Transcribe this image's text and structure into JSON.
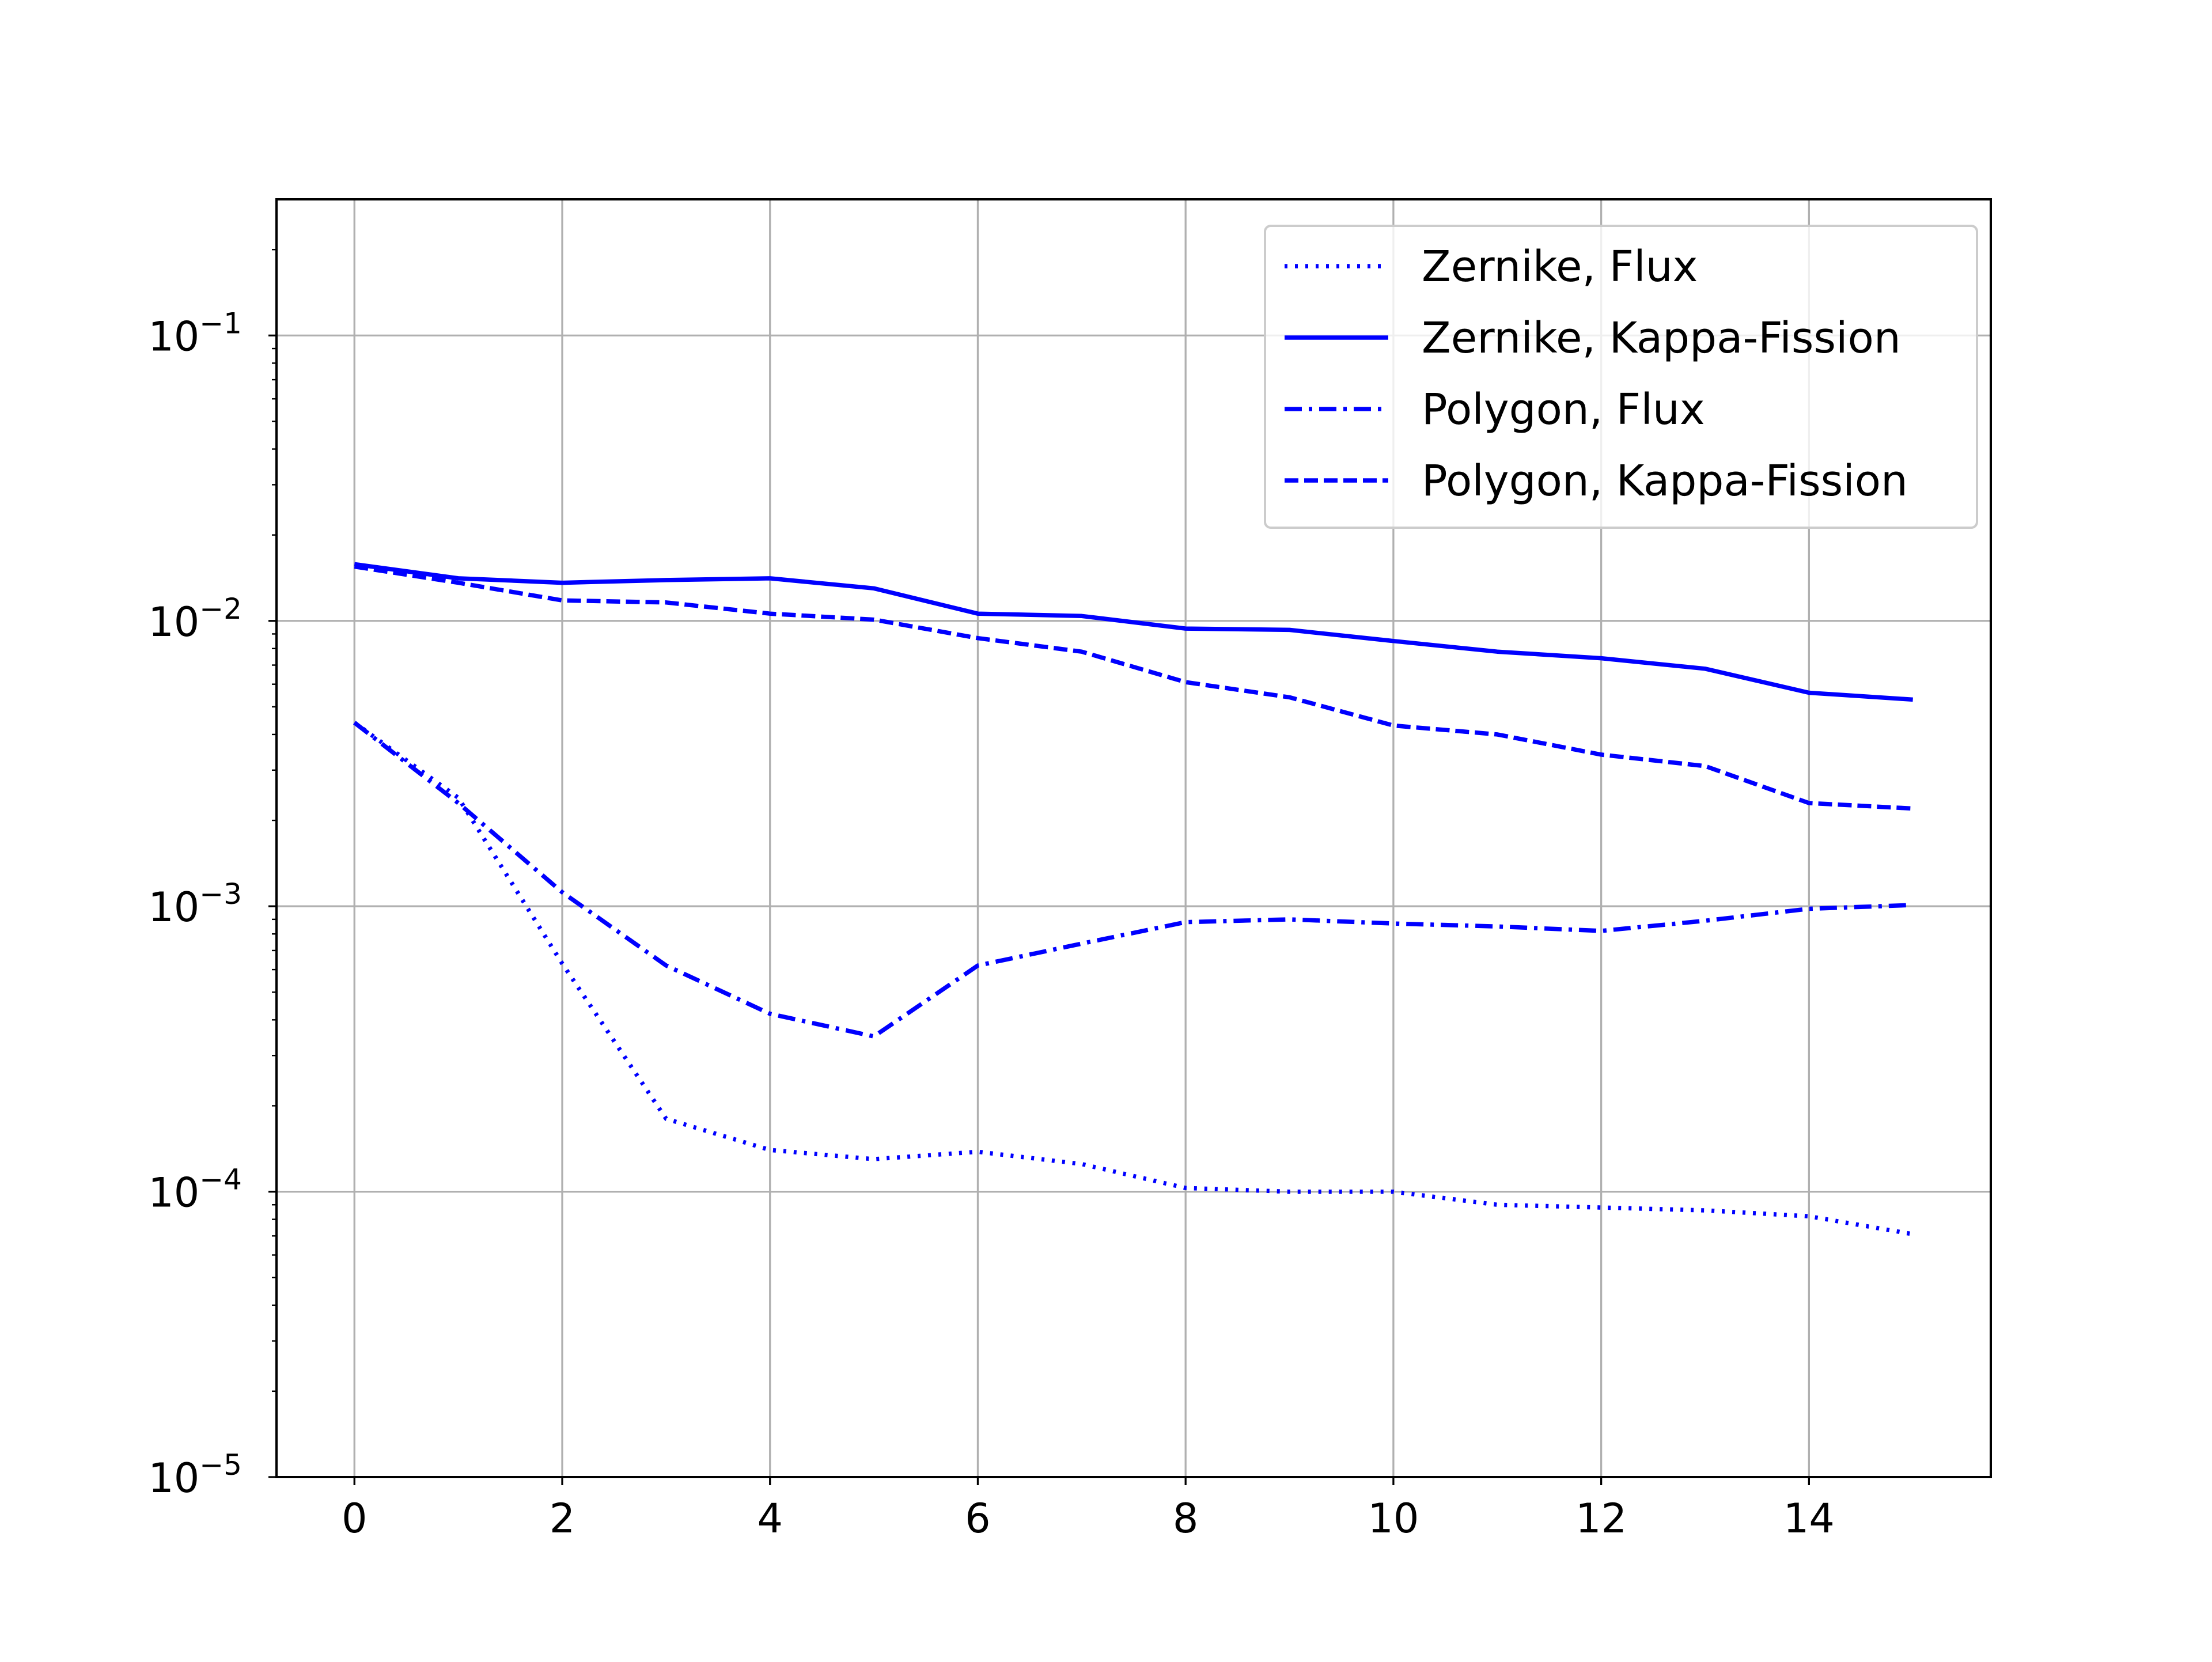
{
  "chart_data": {
    "type": "line",
    "title": "",
    "xlabel": "",
    "ylabel": "",
    "x": [
      0,
      1,
      2,
      3,
      4,
      5,
      6,
      7,
      8,
      9,
      10,
      11,
      12,
      13,
      14,
      15
    ],
    "xlim": [
      -0.75,
      15.75
    ],
    "ylim": [
      1e-05,
      0.3
    ],
    "yscale": "log",
    "xticks": [
      "0",
      "2",
      "4",
      "6",
      "8",
      "10",
      "12",
      "14"
    ],
    "xtick_values": [
      0,
      2,
      4,
      6,
      8,
      10,
      12,
      14
    ],
    "yticks": [
      {
        "value": 1e-05,
        "base": "10",
        "exp": "−5"
      },
      {
        "value": 0.0001,
        "base": "10",
        "exp": "−4"
      },
      {
        "value": 0.001,
        "base": "10",
        "exp": "−3"
      },
      {
        "value": 0.01,
        "base": "10",
        "exp": "−2"
      },
      {
        "value": 0.1,
        "base": "10",
        "exp": "−1"
      }
    ],
    "grid": true,
    "legend_position": "top-right",
    "series": [
      {
        "name": "Zernike, Flux",
        "style": "dotted",
        "color": "#0000ff",
        "values": [
          0.0044,
          0.0024,
          0.00063,
          0.00018,
          0.00014,
          0.00013,
          0.000138,
          0.000125,
          0.000103,
          0.0001,
          0.0001,
          9e-05,
          8.8e-05,
          8.6e-05,
          8.2e-05,
          7.1e-05
        ]
      },
      {
        "name": "Zernike, Kappa-Fission",
        "style": "solid",
        "color": "#0000ff",
        "values": [
          0.0158,
          0.0141,
          0.0136,
          0.0139,
          0.0141,
          0.013,
          0.0106,
          0.0104,
          0.0094,
          0.0093,
          0.0085,
          0.0078,
          0.0074,
          0.0068,
          0.0056,
          0.0053
        ]
      },
      {
        "name": "Polygon, Flux",
        "style": "dashdot",
        "color": "#0000ff",
        "values": [
          0.0044,
          0.0023,
          0.00112,
          0.00062,
          0.00042,
          0.00035,
          0.00062,
          0.00074,
          0.00088,
          0.0009,
          0.00087,
          0.00085,
          0.00082,
          0.00089,
          0.00098,
          0.00101
        ]
      },
      {
        "name": "Polygon, Kappa-Fission",
        "style": "dashed",
        "color": "#0000ff",
        "values": [
          0.0155,
          0.0136,
          0.0118,
          0.0116,
          0.0106,
          0.0101,
          0.0087,
          0.0078,
          0.0061,
          0.0054,
          0.0043,
          0.004,
          0.0034,
          0.0031,
          0.0023,
          0.0022
        ]
      }
    ]
  }
}
